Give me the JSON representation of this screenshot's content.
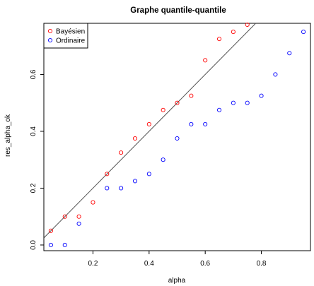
{
  "chart_data": {
    "type": "scatter",
    "title": "Graphe quantile-quantile",
    "xlabel": "alpha",
    "ylabel": "res_alpha_ok",
    "xlim": [
      0.025,
      0.975
    ],
    "ylim": [
      -0.02,
      0.78
    ],
    "xticks": [
      0.2,
      0.4,
      0.6,
      0.8
    ],
    "xtick_labels": [
      "0.2",
      "0.4",
      "0.6",
      "0.8"
    ],
    "yticks": [
      0.0,
      0.2,
      0.4,
      0.6
    ],
    "ytick_labels": [
      "0.0",
      "0.2",
      "0.4",
      "0.6"
    ],
    "grid": false,
    "legend_position": "top-left",
    "reference_line": {
      "type": "identity",
      "slope": 1,
      "intercept": 0,
      "color": "#555555"
    },
    "series": [
      {
        "name": "Bayésien",
        "color": "#ff0000",
        "marker": "open-circle",
        "x": [
          0.05,
          0.1,
          0.15,
          0.2,
          0.25,
          0.3,
          0.35,
          0.4,
          0.45,
          0.5,
          0.55,
          0.6,
          0.65,
          0.7,
          0.75
        ],
        "y": [
          0.05,
          0.1,
          0.1,
          0.15,
          0.25,
          0.325,
          0.375,
          0.425,
          0.475,
          0.5,
          0.525,
          0.65,
          0.725,
          0.75,
          0.775
        ]
      },
      {
        "name": "Ordinaire",
        "color": "#0000ff",
        "marker": "open-circle",
        "x": [
          0.05,
          0.1,
          0.15,
          0.25,
          0.3,
          0.35,
          0.4,
          0.45,
          0.5,
          0.55,
          0.6,
          0.65,
          0.7,
          0.75,
          0.8,
          0.85,
          0.9,
          0.95
        ],
        "y": [
          0.0,
          0.0,
          0.075,
          0.2,
          0.2,
          0.225,
          0.25,
          0.3,
          0.375,
          0.425,
          0.425,
          0.475,
          0.5,
          0.5,
          0.525,
          0.6,
          0.675,
          0.75
        ]
      }
    ]
  }
}
